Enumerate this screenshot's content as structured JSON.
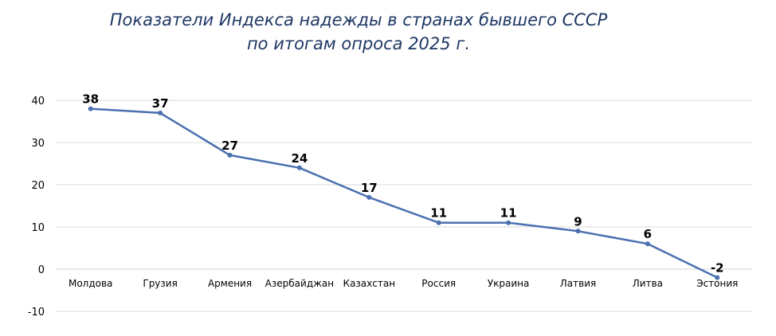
{
  "chart_data": {
    "type": "line",
    "title_line1": "Показатели Индекса надежды в странах бывшего СССР",
    "title_line2": "по итогам опроса 2025 г.",
    "categories": [
      "Молдова",
      "Грузия",
      "Армения",
      "Азербайджан",
      "Казахстан",
      "Россия",
      "Украина",
      "Латвия",
      "Литва",
      "Эстония"
    ],
    "values": [
      38,
      37,
      27,
      24,
      17,
      11,
      11,
      9,
      6,
      -2
    ],
    "ylim": [
      -10,
      40
    ],
    "yticks": [
      -10,
      0,
      10,
      20,
      30,
      40
    ],
    "grid": true,
    "legend": "none",
    "line_color": "#4a70b0"
  }
}
